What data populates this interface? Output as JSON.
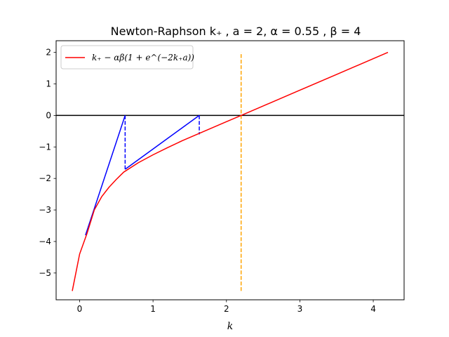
{
  "chart_data": {
    "type": "line",
    "title": "Newton-Raphson k₊ , a = 2, α = 0.55 , β = 4",
    "xlabel": "k",
    "ylabel": "",
    "xlim": [
      -0.32,
      4.42
    ],
    "ylim": [
      -5.85,
      2.37
    ],
    "xticks": [
      0,
      1,
      2,
      3,
      4
    ],
    "yticks": [
      2,
      1,
      0,
      -1,
      -2,
      -3,
      -4,
      -5
    ],
    "grid": false,
    "legend_position": "upper-left",
    "parameters": {
      "a": 2,
      "alpha": 0.55,
      "beta": 4
    },
    "series": [
      {
        "name": "k₊ − αβ(1 + e^(−2k₊a))",
        "color": "#ff0000",
        "style": "solid",
        "x": [
          -0.1,
          0.0,
          0.1,
          0.2,
          0.3,
          0.4,
          0.5,
          0.6,
          0.8,
          1.0,
          1.2,
          1.4,
          1.6,
          1.8,
          2.0,
          2.2,
          2.5,
          3.0,
          3.5,
          4.0,
          4.2
        ],
        "y": [
          -5.57,
          -4.4,
          -3.75,
          -3.0,
          -2.58,
          -2.28,
          -2.03,
          -1.8,
          -1.5,
          -1.25,
          -1.02,
          -0.8,
          -0.6,
          -0.4,
          -0.2,
          0.0,
          0.3,
          0.8,
          1.3,
          1.8,
          2.0
        ]
      }
    ],
    "newton_tangents": {
      "color": "#0000ff",
      "segments": [
        {
          "x": [
            0.08,
            0.62
          ],
          "y": [
            -3.8,
            0.0
          ]
        },
        {
          "x": [
            0.62,
            1.63
          ],
          "y": [
            -1.71,
            0.0
          ]
        }
      ]
    },
    "newton_drops": {
      "color": "#0000ff",
      "style": "dashed",
      "segments": [
        {
          "x": [
            0.62,
            0.62
          ],
          "y": [
            0.0,
            -1.71
          ]
        },
        {
          "x": [
            1.63,
            1.63
          ],
          "y": [
            0.0,
            -0.6
          ]
        }
      ]
    },
    "zero_line": {
      "y": 0,
      "color": "#000000"
    },
    "root_marker": {
      "x": 2.2,
      "y": [
        -5.57,
        2.0
      ],
      "color": "#ffa500",
      "style": "dashed"
    }
  }
}
